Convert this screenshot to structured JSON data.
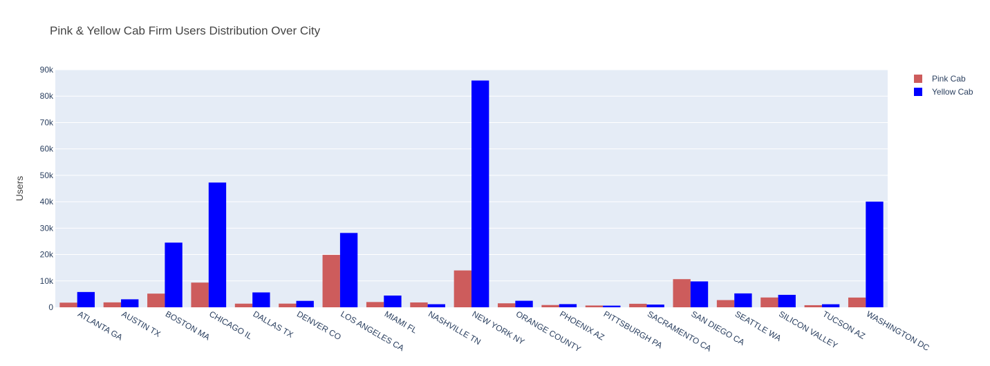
{
  "chart_data": {
    "type": "bar",
    "title": "Pink & Yellow Cab Firm Users Distribution Over City",
    "xlabel": "",
    "ylabel": "Users",
    "ylim": [
      0,
      90000
    ],
    "yticks": [
      0,
      10000,
      20000,
      30000,
      40000,
      50000,
      60000,
      70000,
      80000,
      90000
    ],
    "ytick_labels": [
      "0",
      "10k",
      "20k",
      "30k",
      "40k",
      "50k",
      "60k",
      "70k",
      "80k",
      "90k"
    ],
    "grid": true,
    "legend_position": "top-right",
    "categories": [
      "ATLANTA GA",
      "AUSTIN TX",
      "BOSTON MA",
      "CHICAGO IL",
      "DALLAS TX",
      "DENVER CO",
      "LOS ANGELES CA",
      "MIAMI FL",
      "NASHVILLE TN",
      "NEW YORK NY",
      "ORANGE COUNTY",
      "PHOENIX AZ",
      "PITTSBURGH PA",
      "SACRAMENTO CA",
      "SAN DIEGO CA",
      "SEATTLE WA",
      "SILICON VALLEY",
      "TUCSON AZ",
      "WASHINGTON DC"
    ],
    "series": [
      {
        "name": "Pink Cab",
        "color": "#CD5C5C",
        "values": [
          1762,
          1868,
          5186,
          9361,
          1380,
          1394,
          19865,
          2002,
          1841,
          13967,
          1513,
          864,
          682,
          1334,
          10672,
          2732,
          3719,
          799,
          3692
        ]
      },
      {
        "name": "Yellow Cab",
        "color": "#0000FF",
        "values": [
          5795,
          3028,
          24506,
          47264,
          5637,
          2431,
          28168,
          4452,
          1169,
          85918,
          2469,
          1200,
          631,
          1033,
          9816,
          5265,
          4722,
          1154,
          40045
        ]
      }
    ]
  },
  "colors": {
    "plot_bg": "#E5ECF6",
    "grid": "#FFFFFF",
    "text": "#2A3F5F",
    "title": "#444444"
  }
}
